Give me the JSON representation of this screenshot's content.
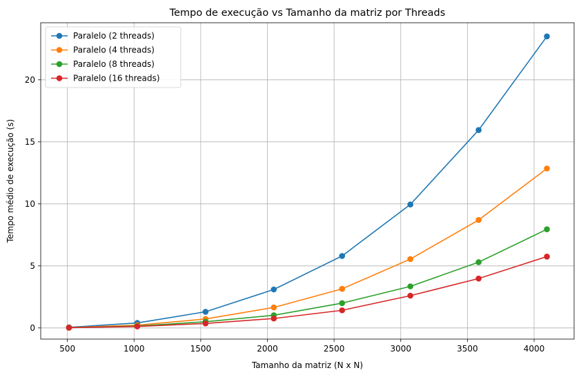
{
  "chart_data": {
    "type": "line",
    "title": "Tempo de execução vs Tamanho da matriz por Threads",
    "xlabel": "Tamanho da matriz (N x N)",
    "ylabel": "Tempo médio de execução (s)",
    "xlim": [
      300,
      4300
    ],
    "ylim": [
      -0.9,
      24.6
    ],
    "xticks": [
      500,
      1000,
      1500,
      2000,
      2500,
      3000,
      3500,
      4000
    ],
    "yticks": [
      0,
      5,
      10,
      15,
      20
    ],
    "grid": true,
    "legend_position": "top-left",
    "x": [
      512,
      1024,
      1536,
      2048,
      2560,
      3072,
      3584,
      4096
    ],
    "series": [
      {
        "name": "Paralelo (2 threads)",
        "color": "#1f77b4",
        "values": [
          0.05,
          0.4,
          1.3,
          3.1,
          5.8,
          9.95,
          15.95,
          23.5
        ]
      },
      {
        "name": "Paralelo (4 threads)",
        "color": "#ff7f0e",
        "values": [
          0.03,
          0.22,
          0.72,
          1.65,
          3.15,
          5.55,
          8.7,
          12.85
        ]
      },
      {
        "name": "Paralelo (8 threads)",
        "color": "#2ca02c",
        "values": [
          0.02,
          0.15,
          0.5,
          1.02,
          2.0,
          3.35,
          5.3,
          7.95
        ]
      },
      {
        "name": "Paralelo (16 threads)",
        "color": "#d62728",
        "values": [
          0.02,
          0.12,
          0.36,
          0.76,
          1.42,
          2.6,
          3.98,
          5.75
        ]
      }
    ]
  }
}
